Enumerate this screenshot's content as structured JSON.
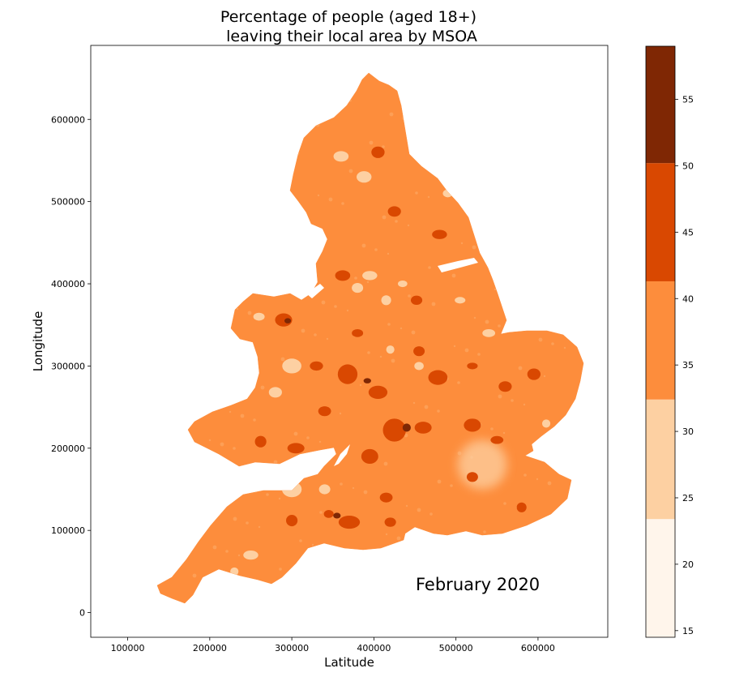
{
  "chart_data": {
    "type": "choropleth",
    "title_lines": [
      "Percentage of people (aged 18+)",
      "leaving their local area by MSOA"
    ],
    "xlabel": "Latitude",
    "ylabel": "Longitude",
    "annotation": "February 2020",
    "xlim": [
      55000,
      685000
    ],
    "ylim": [
      -30000,
      690000
    ],
    "x_ticks": [
      100000,
      200000,
      300000,
      400000,
      500000,
      600000
    ],
    "y_ticks": [
      0,
      100000,
      200000,
      300000,
      400000,
      500000,
      600000
    ],
    "colorbar": {
      "range": [
        14.5,
        59
      ],
      "ticks": [
        15,
        20,
        25,
        30,
        35,
        40,
        45,
        50,
        55
      ],
      "bins": [
        {
          "from": 14.5,
          "to": 23.4,
          "color": "#fff5eb"
        },
        {
          "from": 23.4,
          "to": 32.4,
          "color": "#fdd0a2"
        },
        {
          "from": 32.4,
          "to": 41.3,
          "color": "#fd8d3c"
        },
        {
          "from": 41.3,
          "to": 50.2,
          "color": "#d94801"
        },
        {
          "from": 50.2,
          "to": 59,
          "color": "#7f2704"
        }
      ]
    },
    "grid": false,
    "region_fill_default": "#fd8d3c",
    "hotspots": [
      {
        "x": 368000,
        "y": 290000,
        "r": 12000,
        "color": "#d94801"
      },
      {
        "x": 405000,
        "y": 268000,
        "r": 10000,
        "color": "#d94801"
      },
      {
        "x": 478000,
        "y": 286000,
        "r": 9000,
        "color": "#d94801"
      },
      {
        "x": 452000,
        "y": 380000,
        "r": 7000,
        "color": "#d94801"
      },
      {
        "x": 395000,
        "y": 190000,
        "r": 9000,
        "color": "#d94801"
      },
      {
        "x": 305000,
        "y": 200000,
        "r": 8000,
        "color": "#d94801"
      },
      {
        "x": 425000,
        "y": 222000,
        "r": 14000,
        "color": "#d94801"
      },
      {
        "x": 460000,
        "y": 225000,
        "r": 9000,
        "color": "#d94801"
      },
      {
        "x": 520000,
        "y": 228000,
        "r": 8000,
        "color": "#d94801"
      },
      {
        "x": 560000,
        "y": 275000,
        "r": 8000,
        "color": "#d94801"
      },
      {
        "x": 595000,
        "y": 290000,
        "r": 7000,
        "color": "#d94801"
      },
      {
        "x": 370000,
        "y": 110000,
        "r": 10000,
        "color": "#d94801"
      },
      {
        "x": 300000,
        "y": 112000,
        "r": 7000,
        "color": "#d94801"
      },
      {
        "x": 362000,
        "y": 410000,
        "r": 8000,
        "color": "#d94801"
      },
      {
        "x": 290000,
        "y": 356000,
        "r": 8000,
        "color": "#d94801"
      },
      {
        "x": 425000,
        "y": 488000,
        "r": 8000,
        "color": "#d94801"
      },
      {
        "x": 405000,
        "y": 560000,
        "r": 7000,
        "color": "#d94801"
      },
      {
        "x": 480000,
        "y": 460000,
        "r": 7000,
        "color": "#d94801"
      },
      {
        "x": 262000,
        "y": 208000,
        "r": 7000,
        "color": "#d94801"
      },
      {
        "x": 330000,
        "y": 300000,
        "r": 7000,
        "color": "#d94801"
      },
      {
        "x": 340000,
        "y": 245000,
        "r": 6000,
        "color": "#d94801"
      },
      {
        "x": 420000,
        "y": 110000,
        "r": 7000,
        "color": "#d94801"
      },
      {
        "x": 520000,
        "y": 165000,
        "r": 6000,
        "color": "#d94801"
      },
      {
        "x": 550000,
        "y": 210000,
        "r": 6000,
        "color": "#d94801"
      },
      {
        "x": 580000,
        "y": 128000,
        "r": 6000,
        "color": "#d94801"
      },
      {
        "x": 380000,
        "y": 340000,
        "r": 6000,
        "color": "#d94801"
      },
      {
        "x": 415000,
        "y": 140000,
        "r": 6000,
        "color": "#d94801"
      },
      {
        "x": 345000,
        "y": 120000,
        "r": 6000,
        "color": "#d94801"
      },
      {
        "x": 455000,
        "y": 318000,
        "r": 6000,
        "color": "#d94801"
      },
      {
        "x": 520000,
        "y": 300000,
        "r": 5000,
        "color": "#d94801"
      },
      {
        "x": 440000,
        "y": 225000,
        "r": 5000,
        "color": "#7f2704"
      },
      {
        "x": 392000,
        "y": 282000,
        "r": 4000,
        "color": "#7f2704"
      },
      {
        "x": 355000,
        "y": 118000,
        "r": 3500,
        "color": "#7f2704"
      },
      {
        "x": 295000,
        "y": 355000,
        "r": 4000,
        "color": "#7f2704"
      },
      {
        "x": 380000,
        "y": 395000,
        "r": 6000,
        "color": "#fdd0a2"
      },
      {
        "x": 395000,
        "y": 410000,
        "r": 7000,
        "color": "#fdd0a2"
      },
      {
        "x": 415000,
        "y": 380000,
        "r": 6000,
        "color": "#fdd0a2"
      },
      {
        "x": 435000,
        "y": 400000,
        "r": 5000,
        "color": "#fdd0a2"
      },
      {
        "x": 300000,
        "y": 300000,
        "r": 9000,
        "color": "#fdd0a2"
      },
      {
        "x": 280000,
        "y": 268000,
        "r": 8000,
        "color": "#fdd0a2"
      },
      {
        "x": 340000,
        "y": 150000,
        "r": 6000,
        "color": "#fdd0a2"
      },
      {
        "x": 250000,
        "y": 70000,
        "r": 7000,
        "color": "#fdd0a2"
      },
      {
        "x": 230000,
        "y": 50000,
        "r": 5000,
        "color": "#fdd0a2"
      },
      {
        "x": 360000,
        "y": 555000,
        "r": 8000,
        "color": "#fdd0a2"
      },
      {
        "x": 388000,
        "y": 530000,
        "r": 7000,
        "color": "#fdd0a2"
      },
      {
        "x": 490000,
        "y": 510000,
        "r": 6000,
        "color": "#fdd0a2"
      },
      {
        "x": 470000,
        "y": 560000,
        "r": 5000,
        "color": "#fdd0a2"
      },
      {
        "x": 540000,
        "y": 340000,
        "r": 6000,
        "color": "#fdd0a2"
      },
      {
        "x": 610000,
        "y": 230000,
        "r": 5000,
        "color": "#fdd0a2"
      },
      {
        "x": 260000,
        "y": 360000,
        "r": 6000,
        "color": "#fdd0a2"
      },
      {
        "x": 220000,
        "y": 320000,
        "r": 7000,
        "color": "#fdd0a2"
      },
      {
        "x": 300000,
        "y": 150000,
        "r": 12000,
        "color": "#fdd0a2"
      },
      {
        "x": 455000,
        "y": 300000,
        "r": 5000,
        "color": "#fdd0a2"
      },
      {
        "x": 505000,
        "y": 380000,
        "r": 5000,
        "color": "#fdd0a2"
      },
      {
        "x": 420000,
        "y": 320000,
        "r": 5000,
        "color": "#fdd0a2"
      }
    ],
    "london": {
      "x": 532000,
      "y": 180000,
      "r": 30000,
      "color": "#fdd0a2"
    }
  }
}
